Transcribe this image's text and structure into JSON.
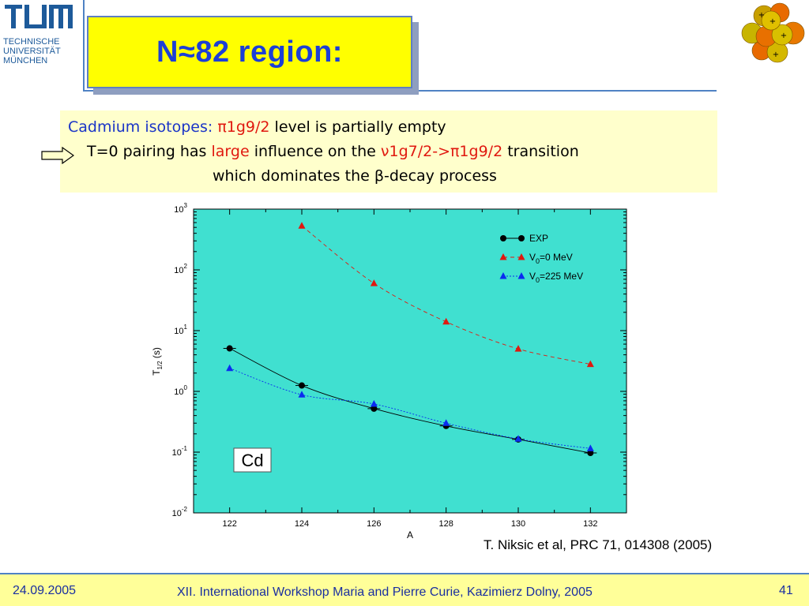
{
  "logo": {
    "line1": "TECHNISCHE",
    "line2": "UNIVERSITÄT",
    "line3": "MÜNCHEN"
  },
  "slide": {
    "title": "N≈82 region:"
  },
  "info": {
    "line1_prefix": "Cadmium isotopes: ",
    "line1_orbital": "π1g9/2",
    "line1_suffix": " level is partially empty",
    "line2_prefix": "T=0 pairing has ",
    "line2_emph": "large",
    "line2_mid": " influence on the ",
    "line2_transition": "ν1g7/2->π1g9/2",
    "line2_suffix": " transition",
    "line3": "which dominates the β-decay process"
  },
  "colors": {
    "title": "#1c3fd6",
    "title_bg": "#ffff00",
    "plot_bg": "#40e0d0",
    "exp": "#000000",
    "v0_0": "#e0180f",
    "v0_225": "#0a2cf0"
  },
  "chart_data": {
    "type": "scatter",
    "xlabel": "A",
    "ylabel": "T1/2 (s)",
    "ylabel_main": "T",
    "ylabel_sub": "1/2",
    "ylabel_unit": " (s)",
    "yscale": "log",
    "xlim": [
      121,
      133
    ],
    "ylim": [
      0.01,
      1000
    ],
    "xticks": [
      "122",
      "124",
      "126",
      "128",
      "130",
      "132"
    ],
    "yticks": [
      {
        "base": "10",
        "exp": "-2"
      },
      {
        "base": "10",
        "exp": "-1"
      },
      {
        "base": "10",
        "exp": "0"
      },
      {
        "base": "10",
        "exp": "1"
      },
      {
        "base": "10",
        "exp": "2"
      },
      {
        "base": "10",
        "exp": "3"
      }
    ],
    "annotation": "Cd",
    "legend_position": "top-right",
    "series": [
      {
        "name": "EXP",
        "legend_main": "EXP",
        "legend_sub": "",
        "legend_rest": "",
        "marker": "circle",
        "line": "solid",
        "x": [
          122,
          124,
          126,
          128,
          130,
          132
        ],
        "y": [
          5.1,
          1.25,
          0.52,
          0.27,
          0.162,
          0.097
        ]
      },
      {
        "name": "V0=0 MeV",
        "legend_main": "V",
        "legend_sub": "0",
        "legend_rest": "=0 MeV",
        "marker": "triangle",
        "line": "dashed",
        "x": [
          124,
          126,
          128,
          130,
          132
        ],
        "y": [
          530,
          60,
          14,
          5.0,
          2.8
        ]
      },
      {
        "name": "V0=225 MeV",
        "legend_main": "V",
        "legend_sub": "0",
        "legend_rest": "=225 MeV",
        "marker": "triangle",
        "line": "dotted",
        "x": [
          122,
          124,
          126,
          128,
          130,
          132
        ],
        "y": [
          2.4,
          0.88,
          0.62,
          0.3,
          0.165,
          0.115
        ]
      }
    ]
  },
  "citation": "T. Niksic et al,  PRC 71, 014308 (2005)",
  "footer": {
    "date": "24.09.2005",
    "event": "XII. International Workshop Maria and Pierre Curie, Kazimierz Dolny, 2005",
    "page": "41"
  }
}
